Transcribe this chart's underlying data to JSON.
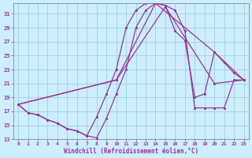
{
  "bg_color": "#cceeff",
  "line_color": "#993399",
  "grid_color": "#99cccc",
  "xlabel": "Windchill (Refroidissement éolien,°C)",
  "xlim": [
    -0.5,
    23.5
  ],
  "ylim": [
    13,
    32.5
  ],
  "yticks": [
    13,
    15,
    17,
    19,
    21,
    23,
    25,
    27,
    29,
    31
  ],
  "xticks": [
    0,
    1,
    2,
    3,
    4,
    5,
    6,
    7,
    8,
    9,
    10,
    11,
    12,
    13,
    14,
    15,
    16,
    17,
    18,
    19,
    20,
    21,
    22,
    23
  ],
  "line1_x": [
    0,
    1,
    2,
    3,
    4,
    5,
    6,
    7,
    8,
    9,
    10,
    11,
    12,
    13,
    14,
    15,
    16,
    17,
    18,
    19,
    20,
    21,
    22,
    23
  ],
  "line1_y": [
    18.0,
    16.8,
    16.5,
    15.8,
    15.3,
    14.5,
    14.2,
    13.5,
    13.2,
    16.0,
    19.5,
    23.0,
    29.0,
    31.5,
    32.5,
    32.2,
    31.5,
    28.5,
    17.5,
    17.5,
    17.5,
    17.5,
    21.5,
    21.5
  ],
  "line2_x": [
    0,
    1,
    2,
    3,
    4,
    5,
    6,
    7,
    8,
    9,
    10,
    11,
    12,
    13,
    14,
    15,
    16,
    17,
    18,
    19,
    20,
    21,
    22,
    23
  ],
  "line2_y": [
    18.0,
    16.8,
    16.5,
    15.8,
    15.3,
    14.5,
    14.2,
    13.5,
    16.2,
    19.5,
    23.0,
    29.0,
    31.5,
    32.5,
    32.5,
    32.2,
    28.5,
    27.2,
    19.0,
    19.5,
    25.5,
    24.0,
    22.5,
    21.5
  ],
  "line3_x": [
    0,
    10,
    14,
    20,
    23
  ],
  "line3_y": [
    18.0,
    21.5,
    32.5,
    25.5,
    21.5
  ],
  "line4_x": [
    0,
    10,
    15,
    20,
    23
  ],
  "line4_y": [
    18.0,
    21.5,
    32.0,
    21.0,
    21.5
  ]
}
